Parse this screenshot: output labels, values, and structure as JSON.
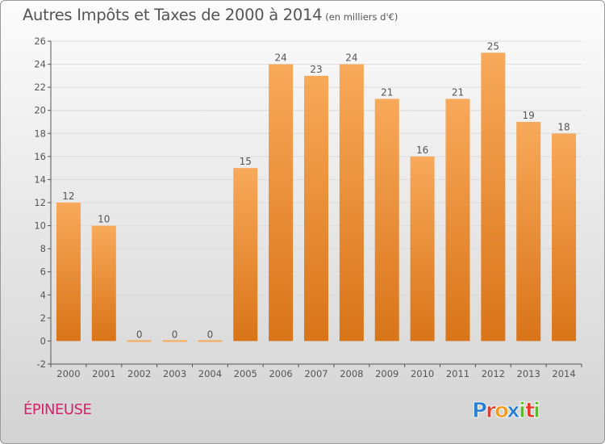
{
  "title": "Autres Impôts et Taxes de 2000 à 2014",
  "subtitle": "(en milliers d'€)",
  "commune": "ÉPINEUSE",
  "logo": {
    "text": "Proxiti",
    "letters": [
      "P",
      "r",
      "o",
      "x",
      "i",
      "t",
      "i"
    ],
    "colors": [
      "#2a7fd0",
      "#e8392b",
      "#f29b1d",
      "#2a7fd0",
      "#5cb82e",
      "#e8392b",
      "#5cb82e"
    ]
  },
  "colors": {
    "bar_light": "#f8a95a",
    "bar_dark": "#d97418",
    "axis": "#555555",
    "grid": "#dcdcdc"
  },
  "chart_data": {
    "type": "bar",
    "categories": [
      "2000",
      "2001",
      "2002",
      "2003",
      "2004",
      "2005",
      "2006",
      "2007",
      "2008",
      "2009",
      "2010",
      "2011",
      "2012",
      "2013",
      "2014"
    ],
    "values": [
      12,
      10,
      0,
      0,
      0,
      15,
      24,
      23,
      24,
      21,
      16,
      21,
      25,
      19,
      18
    ],
    "title": "Autres Impôts et Taxes de 2000 à 2014",
    "xlabel": "",
    "ylabel": "",
    "ylim": [
      -2,
      26
    ],
    "yticks": [
      -2,
      0,
      2,
      4,
      6,
      8,
      10,
      12,
      14,
      16,
      18,
      20,
      22,
      24,
      26
    ],
    "grid": true,
    "legend": "none"
  }
}
